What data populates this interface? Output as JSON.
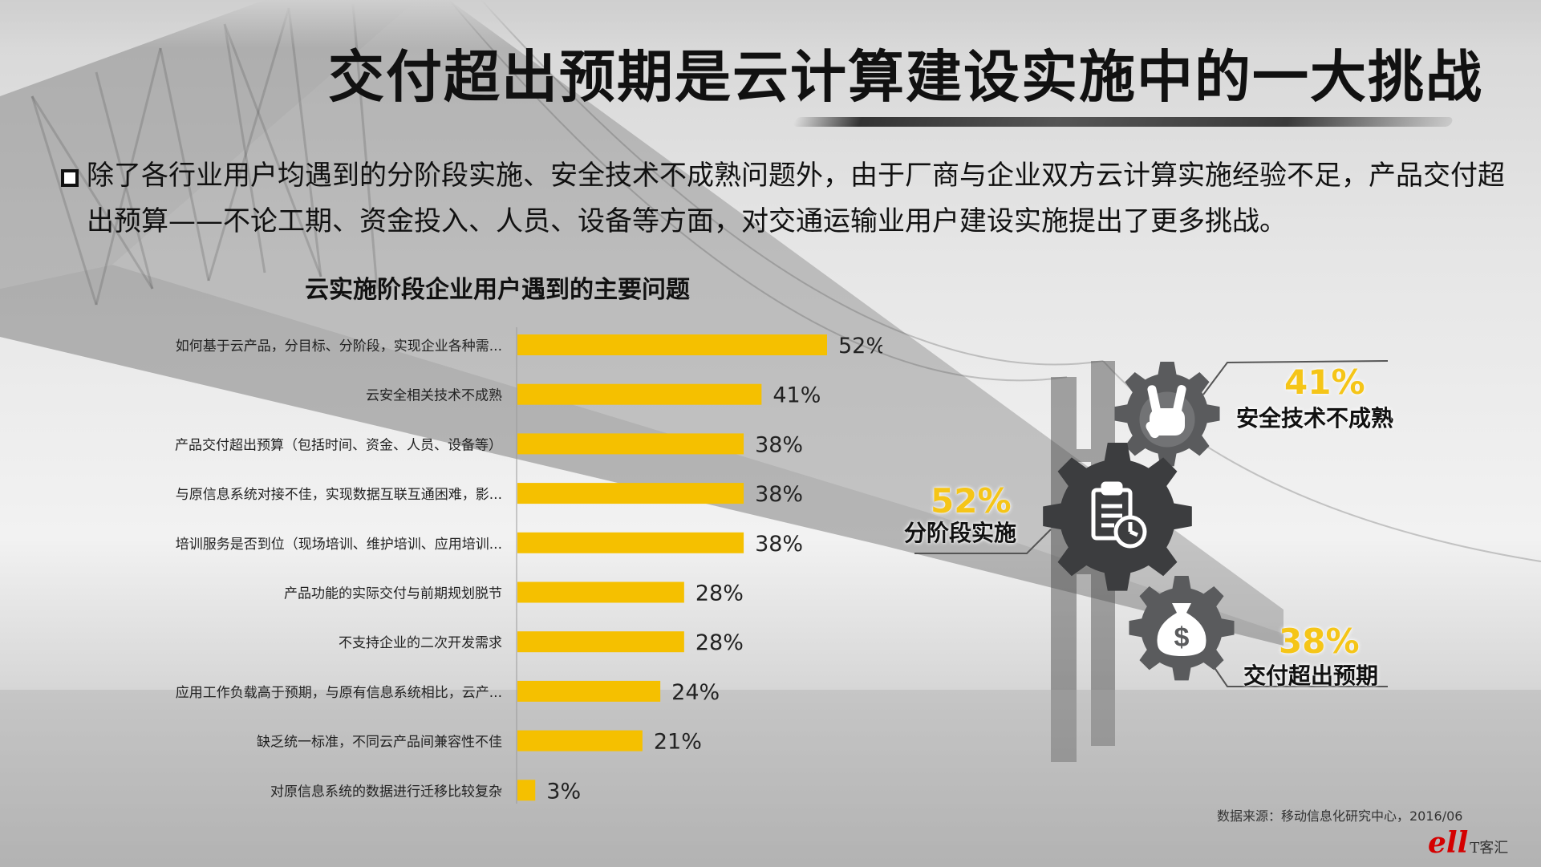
{
  "title": "交付超出预期是云计算建设实施中的一大挑战",
  "intro_text": "除了各行业用户均遇到的分阶段实施、安全技术不成熟问题外，由于厂商与企业双方云计算实施经验不足，产品交付超出预算——不论工期、资金投入、人员、设备等方面，对交通运输业用户建设实施提出了更多挑战。",
  "chart_data": {
    "type": "bar",
    "orientation": "horizontal",
    "title": "云实施阶段企业用户遇到的主要问题",
    "categories": [
      "如何基于云产品，分目标、分阶段，实现企业各种需...",
      "云安全相关技术不成熟",
      "产品交付超出预算（包括时间、资金、人员、设备等）",
      "与原信息系统对接不佳，实现数据互联互通困难，影...",
      "培训服务是否到位（现场培训、维护培训、应用培训...",
      "产品功能的实际交付与前期规划脱节",
      "不支持企业的二次开发需求",
      "应用工作负载高于预期，与原有信息系统相比，云产...",
      "缺乏统一标准，不同云产品间兼容性不佳",
      "对原信息系统的数据进行迁移比较复杂"
    ],
    "values": [
      52,
      41,
      38,
      38,
      38,
      28,
      28,
      24,
      21,
      3
    ],
    "value_labels": [
      "52%",
      "41%",
      "38%",
      "38%",
      "38%",
      "28%",
      "28%",
      "24%",
      "21%",
      "3%"
    ],
    "unit": "%",
    "bar_color": "#f5c000",
    "xlim": [
      0,
      100
    ]
  },
  "gears": [
    {
      "pct": "41%",
      "label": "安全技术不成熟",
      "icon": "hand-gesture-icon"
    },
    {
      "pct": "52%",
      "label": "分阶段实施",
      "icon": "clipboard-clock-icon"
    },
    {
      "pct": "38%",
      "label": "交付超出预期",
      "icon": "money-bag-icon"
    }
  ],
  "source": "数据来源：移动信息化研究中心，2016/06",
  "logo": {
    "mark": "ell",
    "text": "T客汇"
  },
  "colors": {
    "accent": "#f5c518",
    "gear": "#3c3d3f"
  }
}
